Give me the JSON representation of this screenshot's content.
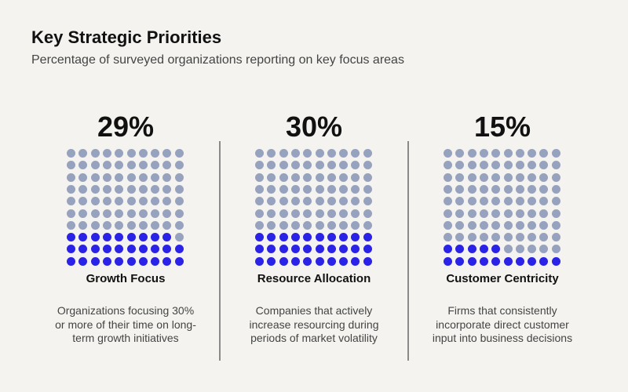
{
  "title": "Key Strategic Priorities",
  "subtitle": "Percentage of surveyed organizations reporting on key focus areas",
  "colors": {
    "filled": "#2b22e8",
    "empty": "#97a3be"
  },
  "chart_data": {
    "type": "waffle",
    "grid": {
      "rows": 10,
      "cols": 10
    },
    "panels": [
      {
        "value": 29,
        "value_label": "29%",
        "label": "Growth Focus",
        "description": "Organizations focusing 30% or more of their time on long-term growth initiatives"
      },
      {
        "value": 30,
        "value_label": "30%",
        "label": "Resource Allocation",
        "description": "Companies that actively increase resourcing during periods of market volatility"
      },
      {
        "value": 15,
        "value_label": "15%",
        "label": "Customer Centricity",
        "description": "Firms that consistently incorporate direct customer input into business decisions"
      }
    ]
  }
}
